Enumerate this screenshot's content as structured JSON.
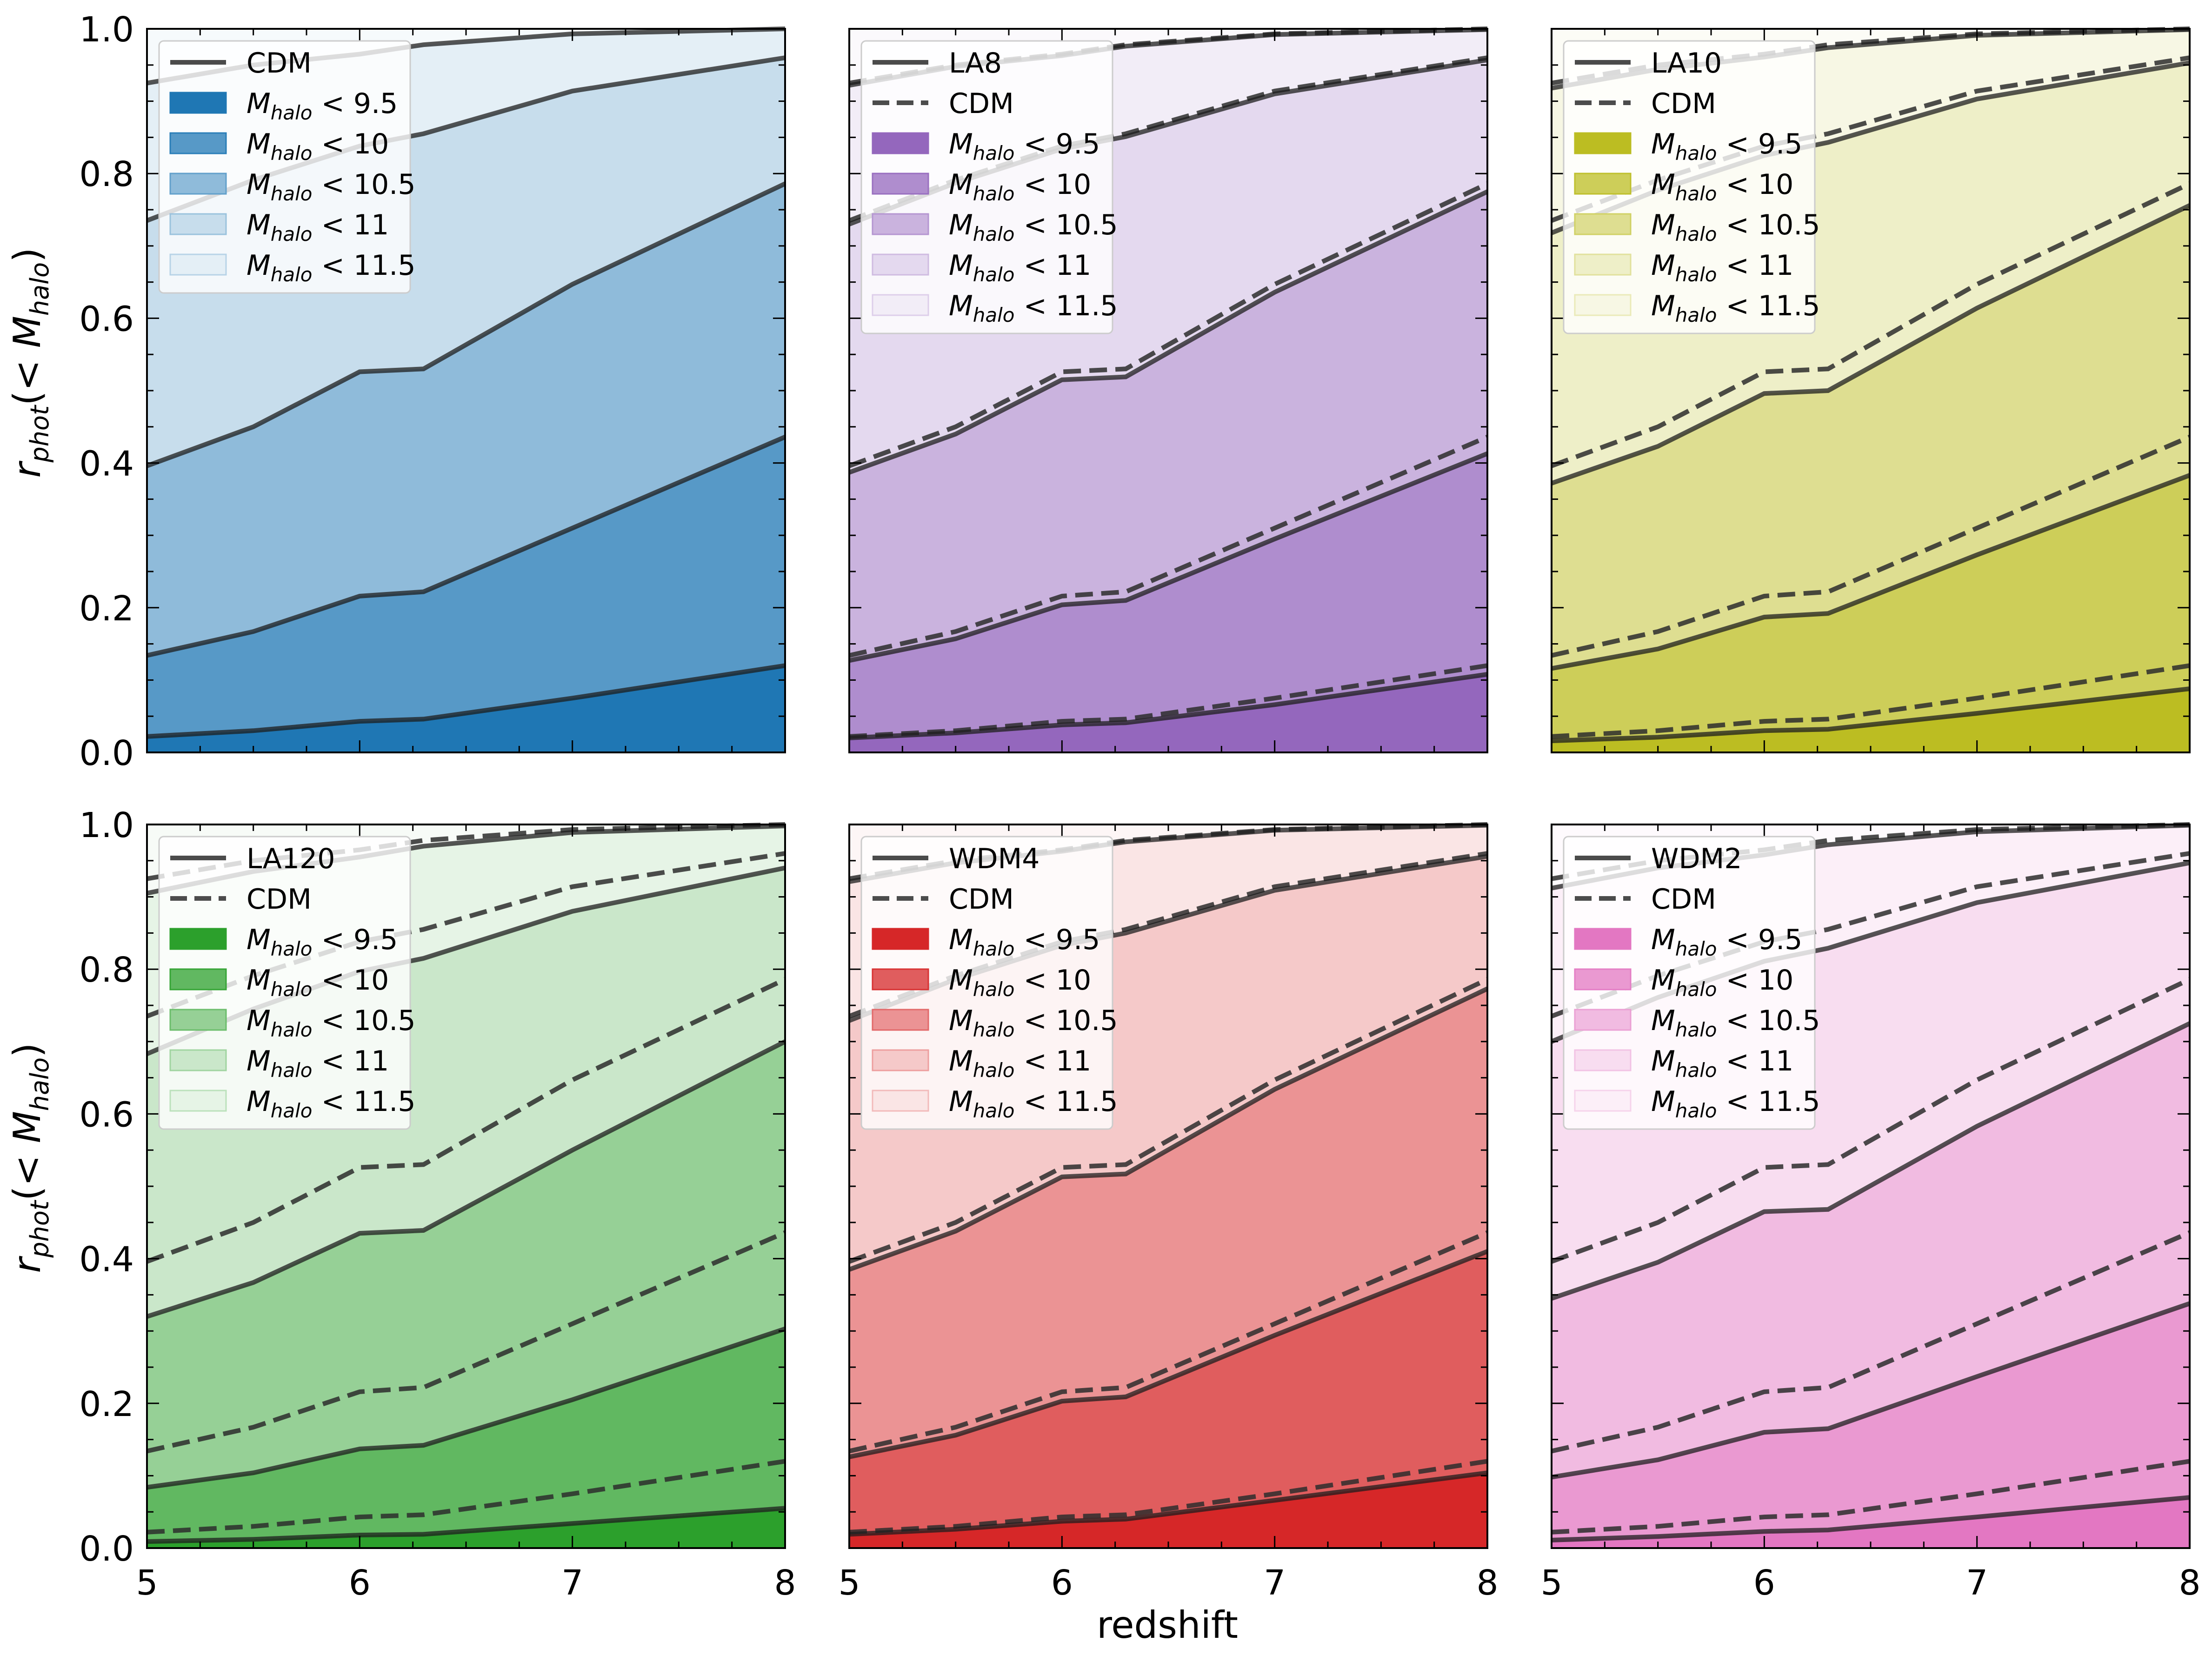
{
  "figure": {
    "xlabel": "redshift",
    "ylabel_base": "r",
    "ylabel_sub": "phot",
    "ylabel_paren_open": "(< ",
    "ylabel_m": "M",
    "ylabel_m_sub": "halo",
    "ylabel_paren_close": ")"
  },
  "legend_text": {
    "m_symbol": "M",
    "m_sub": "halo",
    "thresholds": [
      "< 9.5",
      "< 10",
      "< 10.5",
      "< 11",
      "< 11.5"
    ]
  },
  "chart_data": [
    {
      "type": "area",
      "name": "CDM",
      "color": "#1f77b4",
      "legend_line_label": "CDM",
      "dashed_reference": false,
      "x": [
        5,
        5.5,
        6,
        6.3,
        7,
        8
      ],
      "xlim": [
        5,
        8
      ],
      "ylim": [
        0,
        1
      ],
      "xticks": [
        5,
        6,
        7,
        8
      ],
      "yticks": [
        0.0,
        0.2,
        0.4,
        0.6,
        0.8,
        1.0
      ],
      "series": [
        {
          "name": "M_halo < 9.5",
          "values": [
            0.022,
            0.03,
            0.043,
            0.046,
            0.075,
            0.12
          ]
        },
        {
          "name": "M_halo < 10",
          "values": [
            0.134,
            0.167,
            0.216,
            0.222,
            0.31,
            0.436
          ]
        },
        {
          "name": "M_halo < 10.5",
          "values": [
            0.396,
            0.45,
            0.526,
            0.53,
            0.647,
            0.786
          ]
        },
        {
          "name": "M_halo < 11",
          "values": [
            0.735,
            0.791,
            0.838,
            0.855,
            0.914,
            0.96
          ]
        },
        {
          "name": "M_halo < 11.5",
          "values": [
            0.925,
            0.95,
            0.965,
            0.978,
            0.993,
            1.0
          ]
        }
      ]
    },
    {
      "type": "area",
      "name": "LA8",
      "color": "#9467bd",
      "legend_line_label": "LA8",
      "legend_dash_label": "CDM",
      "dashed_reference": true,
      "x": [
        5,
        5.5,
        6,
        6.3,
        7,
        8
      ],
      "xlim": [
        5,
        8
      ],
      "ylim": [
        0,
        1
      ],
      "xticks": [
        5,
        6,
        7,
        8
      ],
      "yticks": [
        0.0,
        0.2,
        0.4,
        0.6,
        0.8,
        1.0
      ],
      "series": [
        {
          "name": "M_halo < 9.5",
          "values": [
            0.02,
            0.027,
            0.038,
            0.041,
            0.066,
            0.108
          ]
        },
        {
          "name": "M_halo < 10",
          "values": [
            0.127,
            0.157,
            0.204,
            0.21,
            0.295,
            0.413
          ]
        },
        {
          "name": "M_halo < 10.5",
          "values": [
            0.387,
            0.44,
            0.515,
            0.519,
            0.636,
            0.775
          ]
        },
        {
          "name": "M_halo < 11",
          "values": [
            0.73,
            0.787,
            0.834,
            0.851,
            0.91,
            0.957
          ]
        },
        {
          "name": "M_halo < 11.5",
          "values": [
            0.922,
            0.948,
            0.963,
            0.976,
            0.992,
            0.999
          ]
        }
      ]
    },
    {
      "type": "area",
      "name": "LA10",
      "color": "#bcbd22",
      "legend_line_label": "LA10",
      "legend_dash_label": "CDM",
      "dashed_reference": true,
      "x": [
        5,
        5.5,
        6,
        6.3,
        7,
        8
      ],
      "xlim": [
        5,
        8
      ],
      "ylim": [
        0,
        1
      ],
      "xticks": [
        5,
        6,
        7,
        8
      ],
      "yticks": [
        0.0,
        0.2,
        0.4,
        0.6,
        0.8,
        1.0
      ],
      "series": [
        {
          "name": "M_halo < 9.5",
          "values": [
            0.016,
            0.021,
            0.03,
            0.032,
            0.054,
            0.088
          ]
        },
        {
          "name": "M_halo < 10",
          "values": [
            0.116,
            0.143,
            0.187,
            0.192,
            0.273,
            0.383
          ]
        },
        {
          "name": "M_halo < 10.5",
          "values": [
            0.372,
            0.423,
            0.496,
            0.5,
            0.614,
            0.756
          ]
        },
        {
          "name": "M_halo < 11",
          "values": [
            0.718,
            0.777,
            0.825,
            0.843,
            0.903,
            0.953
          ]
        },
        {
          "name": "M_halo < 11.5",
          "values": [
            0.918,
            0.944,
            0.961,
            0.974,
            0.991,
            0.999
          ]
        }
      ]
    },
    {
      "type": "area",
      "name": "LA120",
      "color": "#2ca02c",
      "legend_line_label": "LA120",
      "legend_dash_label": "CDM",
      "dashed_reference": true,
      "x": [
        5,
        5.5,
        6,
        6.3,
        7,
        8
      ],
      "xlim": [
        5,
        8
      ],
      "ylim": [
        0,
        1
      ],
      "xticks": [
        5,
        6,
        7,
        8
      ],
      "yticks": [
        0.0,
        0.2,
        0.4,
        0.6,
        0.8,
        1.0
      ],
      "series": [
        {
          "name": "M_halo < 9.5",
          "values": [
            0.009,
            0.012,
            0.018,
            0.019,
            0.034,
            0.055
          ]
        },
        {
          "name": "M_halo < 10",
          "values": [
            0.084,
            0.104,
            0.137,
            0.142,
            0.205,
            0.303
          ]
        },
        {
          "name": "M_halo < 10.5",
          "values": [
            0.32,
            0.367,
            0.435,
            0.439,
            0.55,
            0.7
          ]
        },
        {
          "name": "M_halo < 11",
          "values": [
            0.683,
            0.745,
            0.797,
            0.815,
            0.88,
            0.94
          ]
        },
        {
          "name": "M_halo < 11.5",
          "values": [
            0.905,
            0.935,
            0.955,
            0.97,
            0.989,
            0.998
          ]
        }
      ]
    },
    {
      "type": "area",
      "name": "WDM4",
      "color": "#d62728",
      "legend_line_label": "WDM4",
      "legend_dash_label": "CDM",
      "dashed_reference": true,
      "x": [
        5,
        5.5,
        6,
        6.3,
        7,
        8
      ],
      "xlim": [
        5,
        8
      ],
      "ylim": [
        0,
        1
      ],
      "xticks": [
        5,
        6,
        7,
        8
      ],
      "yticks": [
        0.0,
        0.2,
        0.4,
        0.6,
        0.8,
        1.0
      ],
      "series": [
        {
          "name": "M_halo < 9.5",
          "values": [
            0.019,
            0.026,
            0.037,
            0.04,
            0.066,
            0.104
          ]
        },
        {
          "name": "M_halo < 10",
          "values": [
            0.126,
            0.156,
            0.203,
            0.209,
            0.294,
            0.41
          ]
        },
        {
          "name": "M_halo < 10.5",
          "values": [
            0.385,
            0.438,
            0.513,
            0.517,
            0.634,
            0.773
          ]
        },
        {
          "name": "M_halo < 11",
          "values": [
            0.729,
            0.786,
            0.833,
            0.85,
            0.909,
            0.956
          ]
        },
        {
          "name": "M_halo < 11.5",
          "values": [
            0.921,
            0.947,
            0.963,
            0.976,
            0.992,
            0.999
          ]
        }
      ]
    },
    {
      "type": "area",
      "name": "WDM2",
      "color": "#e377c2",
      "legend_line_label": "WDM2",
      "legend_dash_label": "CDM",
      "dashed_reference": true,
      "x": [
        5,
        5.5,
        6,
        6.3,
        7,
        8
      ],
      "xlim": [
        5,
        8
      ],
      "ylim": [
        0,
        1
      ],
      "xticks": [
        5,
        6,
        7,
        8
      ],
      "yticks": [
        0.0,
        0.2,
        0.4,
        0.6,
        0.8,
        1.0
      ],
      "series": [
        {
          "name": "M_halo < 9.5",
          "values": [
            0.011,
            0.016,
            0.023,
            0.025,
            0.043,
            0.07
          ]
        },
        {
          "name": "M_halo < 10",
          "values": [
            0.098,
            0.122,
            0.16,
            0.165,
            0.237,
            0.338
          ]
        },
        {
          "name": "M_halo < 10.5",
          "values": [
            0.345,
            0.395,
            0.465,
            0.468,
            0.583,
            0.725
          ]
        },
        {
          "name": "M_halo < 11",
          "values": [
            0.7,
            0.761,
            0.811,
            0.829,
            0.892,
            0.947
          ]
        },
        {
          "name": "M_halo < 11.5",
          "values": [
            0.912,
            0.94,
            0.958,
            0.972,
            0.99,
            0.999
          ]
        }
      ]
    }
  ]
}
